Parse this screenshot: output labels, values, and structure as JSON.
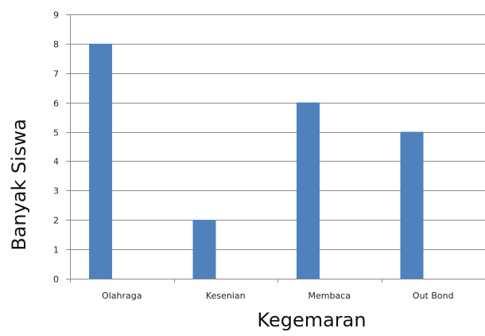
{
  "chart_data": {
    "type": "bar",
    "categories": [
      "Olahraga",
      "Kesenian",
      "Membaca",
      "Out Bond"
    ],
    "values": [
      8,
      2,
      6,
      5
    ],
    "title": "",
    "xlabel": "Kegemaran",
    "ylabel": "Banyak Siswa",
    "ylim": [
      0,
      9
    ],
    "yticks": [
      0,
      1,
      2,
      3,
      4,
      5,
      6,
      7,
      8,
      9
    ],
    "grid": true,
    "bar_color": "#4F81BD",
    "grid_color": "#8C8C8C",
    "axis_color": "#8C8C8C"
  }
}
